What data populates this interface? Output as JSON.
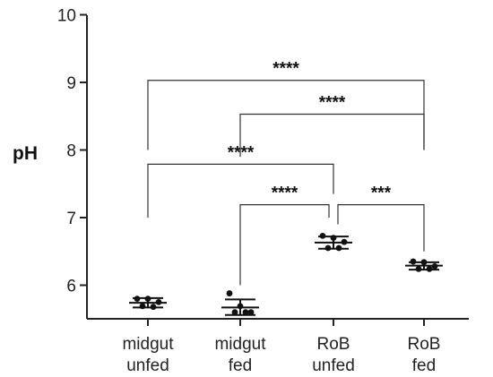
{
  "chart_data": {
    "type": "scatter",
    "ylabel": "pH",
    "ylim": [
      5.5,
      10
    ],
    "yticks": [
      "6",
      "7",
      "8",
      "9",
      "10"
    ],
    "categories": [
      [
        "midgut",
        "unfed"
      ],
      [
        "midgut",
        "fed"
      ],
      [
        "RoB",
        "unfed"
      ],
      [
        "RoB",
        "fed"
      ]
    ],
    "groups": [
      {
        "points": [
          5.8,
          5.8,
          5.75,
          5.69,
          5.68
        ],
        "mean": 5.74,
        "sd_low": 5.67,
        "sd_high": 5.81
      },
      {
        "points": [
          5.88,
          5.69,
          5.6,
          5.6,
          5.6
        ],
        "mean": 5.67,
        "sd_low": 5.56,
        "sd_high": 5.79
      },
      {
        "points": [
          6.73,
          6.7,
          6.64,
          6.55,
          6.55
        ],
        "mean": 6.63,
        "sd_low": 6.54,
        "sd_high": 6.72
      },
      {
        "points": [
          6.35,
          6.34,
          6.28,
          6.24,
          6.24
        ],
        "mean": 6.29,
        "sd_low": 6.23,
        "sd_high": 6.34
      }
    ],
    "comparisons": [
      {
        "from": 0,
        "to": 3,
        "label": "****",
        "level": 9.03,
        "left_drop": 8.0,
        "right_drop": 8.0
      },
      {
        "from": 1,
        "to": 3,
        "label": "****",
        "level": 8.53,
        "left_drop": 7.9,
        "right_drop": 8.0
      },
      {
        "from": 0,
        "to": 2,
        "label": "****",
        "level": 7.79,
        "left_drop": 7.0,
        "right_drop": 7.35
      },
      {
        "from": 1,
        "to": 2,
        "label": "****",
        "level": 7.19,
        "left_drop": 6.0,
        "right_drop": 7.0
      },
      {
        "from": 2,
        "to": 3,
        "label": "***",
        "level": 7.19,
        "left_drop": 6.9,
        "right_drop": 6.5
      }
    ]
  }
}
